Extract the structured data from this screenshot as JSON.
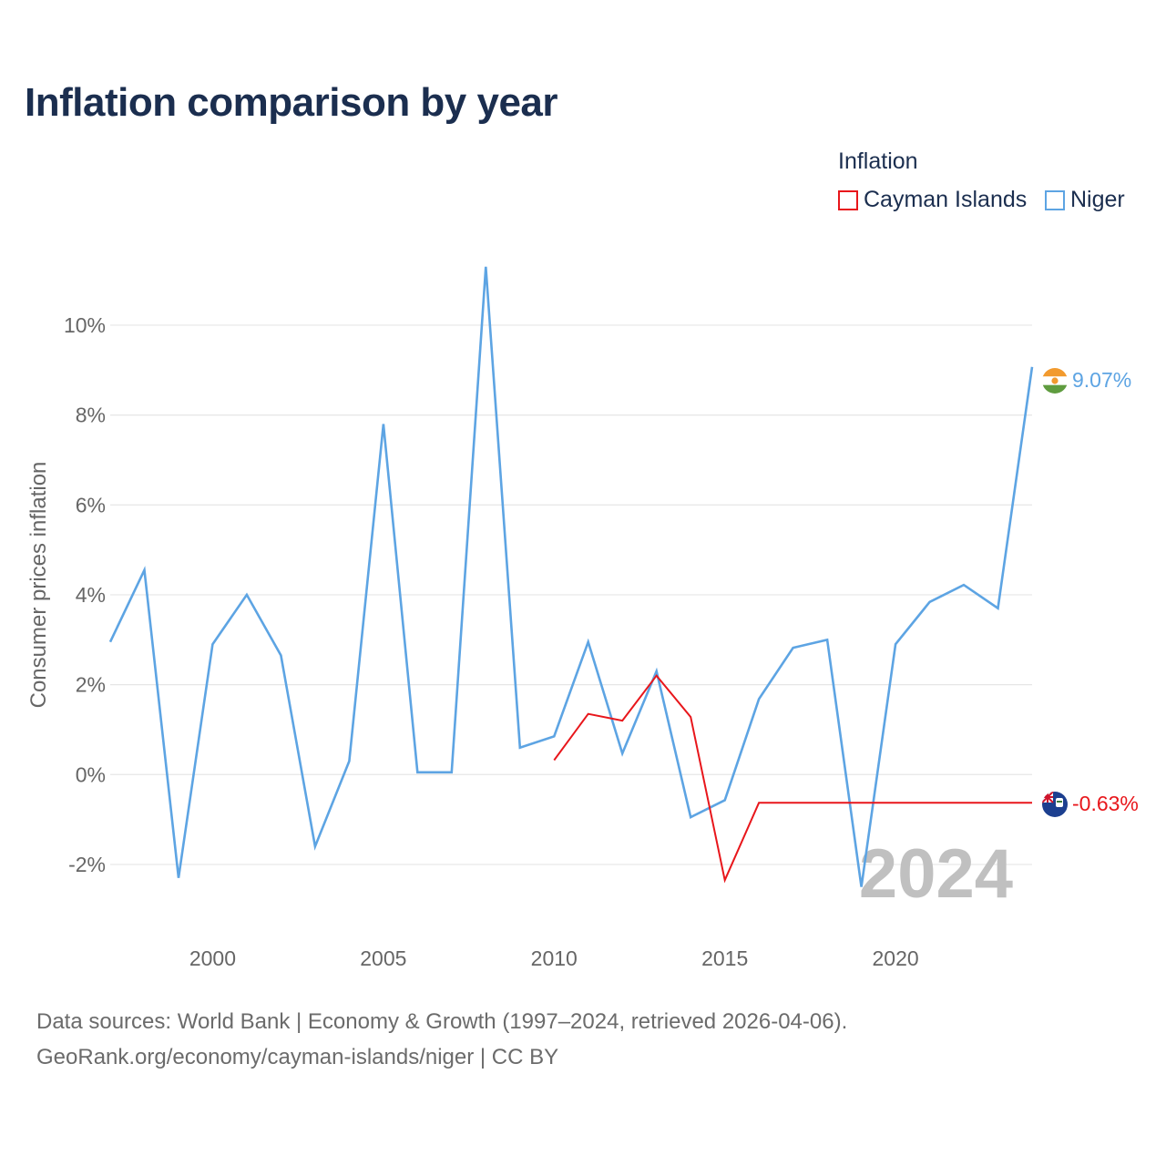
{
  "title": "Inflation comparison by year",
  "legend": {
    "title": "Inflation",
    "items": [
      {
        "label": "Cayman Islands",
        "color": "#e8161b"
      },
      {
        "label": "Niger",
        "color": "#5da4e3"
      }
    ]
  },
  "chart_data": {
    "type": "line",
    "title": "Inflation comparison by year",
    "xlabel": "",
    "ylabel": "Consumer prices inflation",
    "xlim": [
      1997,
      2024
    ],
    "ylim": [
      -3.4,
      11.6
    ],
    "x_ticks": [
      2000,
      2005,
      2010,
      2015,
      2020
    ],
    "y_ticks": [
      -2,
      0,
      2,
      4,
      6,
      8,
      10
    ],
    "y_tick_labels": [
      "-2%",
      "0%",
      "2%",
      "4%",
      "6%",
      "8%",
      "10%"
    ],
    "grid": true,
    "legend_position": "top-right",
    "series": [
      {
        "name": "Cayman Islands",
        "color": "#e8161b",
        "x": [
          2010,
          2011,
          2012,
          2013,
          2014,
          2015,
          2016,
          2024
        ],
        "values": [
          0.32,
          1.35,
          1.2,
          2.2,
          1.28,
          -2.35,
          -0.63,
          -0.63
        ],
        "end_label": "-0.63%"
      },
      {
        "name": "Niger",
        "color": "#5da4e3",
        "x": [
          1997,
          1998,
          1999,
          2000,
          2001,
          2002,
          2003,
          2004,
          2005,
          2006,
          2007,
          2008,
          2009,
          2010,
          2011,
          2012,
          2013,
          2014,
          2015,
          2016,
          2017,
          2018,
          2019,
          2020,
          2021,
          2022,
          2023,
          2024
        ],
        "values": [
          2.95,
          4.55,
          -2.3,
          2.9,
          4.0,
          2.65,
          -1.6,
          0.3,
          7.8,
          0.05,
          0.05,
          11.3,
          0.6,
          0.85,
          2.95,
          0.47,
          2.3,
          -0.95,
          -0.57,
          1.68,
          2.82,
          3.0,
          -2.5,
          2.9,
          3.84,
          4.22,
          3.7,
          9.07
        ],
        "end_label": "9.07%"
      }
    ],
    "watermark_year": "2024"
  },
  "source": {
    "line1": "Data sources: World Bank | Economy & Growth (1997–2024, retrieved 2026-04-06).",
    "line2": "GeoRank.org/economy/cayman-islands/niger | CC BY"
  },
  "icons": {
    "niger": "niger-flag-icon",
    "cayman": "cayman-islands-flag-icon"
  }
}
